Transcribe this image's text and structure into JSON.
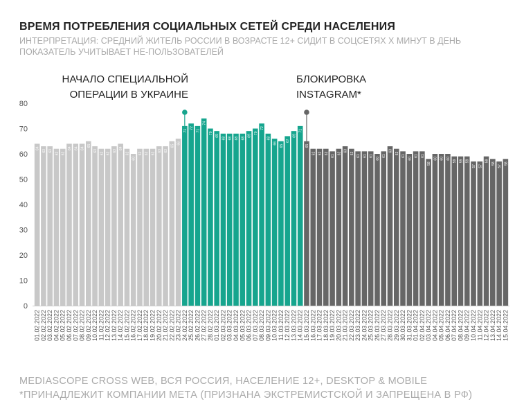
{
  "title": "ВРЕМЯ ПОТРЕБЛЕНИЯ СОЦИАЛЬНЫХ СЕТЕЙ СРЕДИ НАСЕЛЕНИЯ",
  "subtitle_line1": "ИНТЕРПРЕТАЦИЯ: СРЕДНИЙ ЖИТЕЛЬ РОССИИ В ВОЗРАСТЕ 12+ СИДИТ В СОЦСЕТЯХ Х МИНУТ В ДЕНЬ",
  "subtitle_line2": "ПОКАЗАТЕЛЬ УЧИТЫВАЕТ НЕ-ПОЛЬЗОВАТЕЛЕЙ",
  "annotations": {
    "operation_line1": "НАЧАЛО СПЕЦИАЛЬНОЙ",
    "operation_line2": "ОПЕРАЦИИ В УКРАИНЕ",
    "instagram_line1": "БЛОКИРОВКА",
    "instagram_line2": "INSTAGRAM*"
  },
  "footer_line1": "MEDIASCOPE CROSS WEB, ВСЯ РОССИЯ, НАСЕЛЕНИЕ 12+, DESKTOP & MOBILE",
  "footer_line2": "*ПРИНАДЛЕЖИТ КОМПАНИИ МЕТА (ПРИЗНАНА ЭКСТРЕМИСТСКОЙ И ЗАПРЕЩЕНА В РФ)",
  "colors": {
    "before": "#c8c8c8",
    "war": "#16a58e",
    "after": "#666666",
    "marker_war": "#16a58e",
    "marker_block": "#666666"
  },
  "chart_data": {
    "type": "bar",
    "ylim": [
      0,
      80
    ],
    "yticks": [
      0,
      10,
      20,
      30,
      40,
      50,
      60,
      70,
      80
    ],
    "grid": false,
    "categories": [
      "01.02.2022",
      "02.02.2022",
      "03.02.2022",
      "04.02.2022",
      "05.02.2022",
      "06.02.2022",
      "07.02.2022",
      "08.02.2022",
      "09.02.2022",
      "10.02.2022",
      "11.02.2022",
      "12.02.2022",
      "13.02.2022",
      "14.02.2022",
      "15.02.2022",
      "16.02.2022",
      "17.02.2022",
      "18.02.2022",
      "19.02.2022",
      "20.02.2022",
      "21.02.2022",
      "22.02.2022",
      "23.02.2022",
      "24.02.2022",
      "25.02.2022",
      "26.02.2022",
      "27.02.2022",
      "28.02.2022",
      "01.03.2022",
      "02.03.2022",
      "03.03.2022",
      "04.03.2022",
      "05.03.2022",
      "06.03.2022",
      "07.03.2022",
      "08.03.2022",
      "09.03.2022",
      "10.03.2022",
      "11.03.2022",
      "12.03.2022",
      "13.03.2022",
      "14.03.2022",
      "15.03.2022",
      "16.03.2022",
      "17.03.2022",
      "18.03.2022",
      "19.03.2022",
      "20.03.2022",
      "21.03.2022",
      "22.03.2022",
      "23.03.2022",
      "24.03.2022",
      "25.03.2022",
      "26.03.2022",
      "27.03.2022",
      "28.03.2022",
      "29.03.2022",
      "30.03.2022",
      "31.03.2022",
      "01.04.2022",
      "02.04.2022",
      "03.04.2022",
      "04.04.2022",
      "05.04.2022",
      "06.04.2022",
      "07.04.2022",
      "08.04.2022",
      "09.04.2022",
      "10.04.2022",
      "11.04.2022",
      "12.04.2022",
      "13.04.2022",
      "14.04.2022",
      "15.04.2022"
    ],
    "values": [
      64,
      63,
      63,
      62,
      62,
      64,
      64,
      64,
      65,
      63,
      62,
      62,
      63,
      64,
      62,
      60,
      62,
      62,
      62,
      63,
      63,
      65,
      66,
      71,
      72,
      71,
      74,
      70,
      69,
      68,
      68,
      68,
      68,
      69,
      70,
      72,
      68,
      66,
      65,
      67,
      69,
      71,
      65,
      62,
      62,
      62,
      61,
      62,
      63,
      62,
      61,
      61,
      61,
      60,
      61,
      63,
      62,
      61,
      60,
      61,
      61,
      58,
      60,
      60,
      60,
      59,
      59,
      59,
      57,
      57,
      59,
      58,
      57,
      58
    ],
    "segments": [
      {
        "start": 0,
        "end": 22,
        "color_key": "before"
      },
      {
        "start": 23,
        "end": 41,
        "color_key": "war"
      },
      {
        "start": 42,
        "end": 73,
        "color_key": "after"
      }
    ],
    "markers": [
      {
        "index": 23,
        "label_key": "operation",
        "color_key": "marker_war"
      },
      {
        "index": 42,
        "label_key": "instagram",
        "color_key": "marker_block"
      }
    ]
  }
}
